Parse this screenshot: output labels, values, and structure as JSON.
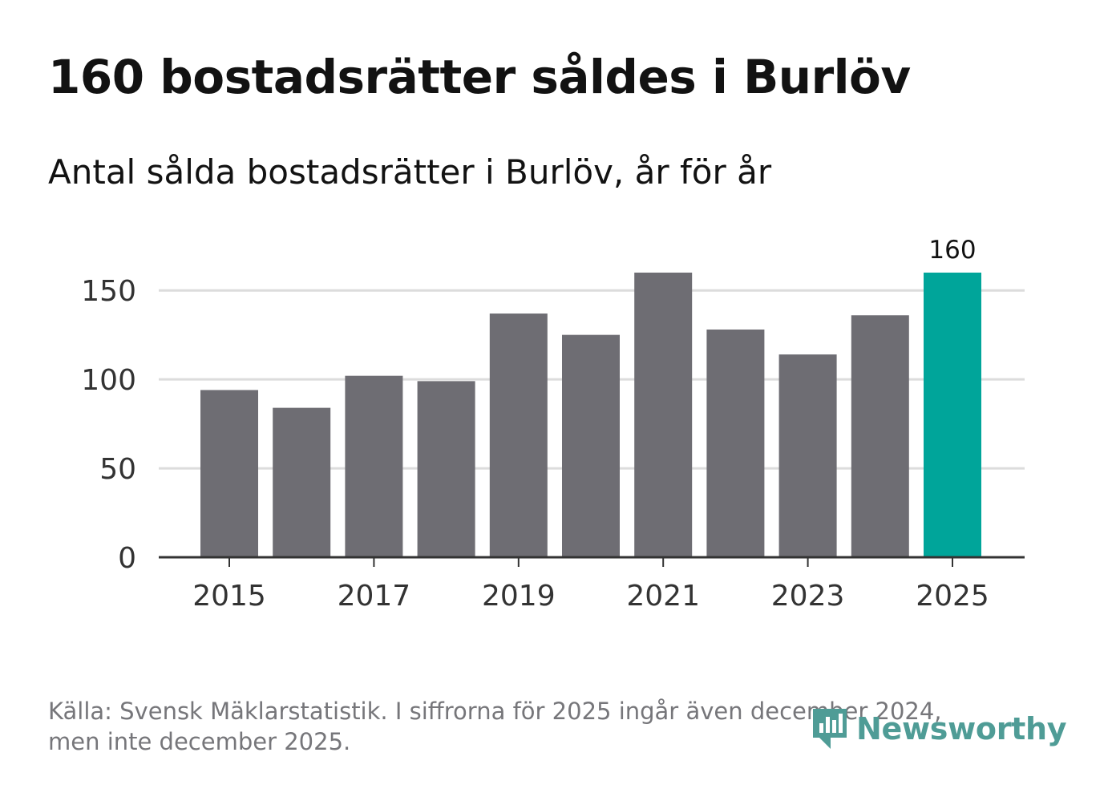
{
  "title": "160 bostadsrätter såldes i Burlöv",
  "subtitle": "Antal sålda bostadsrätter i Burlöv, år för år",
  "source": {
    "line1": "Källa: Svensk Mäklarstatistik. I siffrorna för 2025 ingår även december 2024,",
    "line2": "men inte december 2025."
  },
  "logo": {
    "text": "Newsworthy",
    "icon": "newsworthy-logo-icon"
  },
  "colors": {
    "bar": "#6e6d73",
    "highlight": "#00a59a",
    "grid": "#dcdcdc",
    "axis": "#333333",
    "tick_text": "#333333"
  },
  "chart_data": {
    "type": "bar",
    "title": "160 bostadsrätter såldes i Burlöv",
    "subtitle": "Antal sålda bostadsrätter i Burlöv, år för år",
    "xlabel": "",
    "ylabel": "",
    "categories": [
      "2015",
      "2016",
      "2017",
      "2018",
      "2019",
      "2020",
      "2021",
      "2022",
      "2023",
      "2024",
      "2025"
    ],
    "values": [
      94,
      84,
      102,
      99,
      137,
      125,
      160,
      128,
      114,
      136,
      160
    ],
    "highlight_index": 10,
    "data_labels": [
      {
        "index": 10,
        "text": "160"
      }
    ],
    "x_tick_labels": [
      "2015",
      "2017",
      "2019",
      "2021",
      "2023",
      "2025"
    ],
    "y_ticks": [
      0,
      50,
      100,
      150
    ],
    "ylim": [
      0,
      170
    ],
    "grid": true,
    "legend": "none"
  }
}
